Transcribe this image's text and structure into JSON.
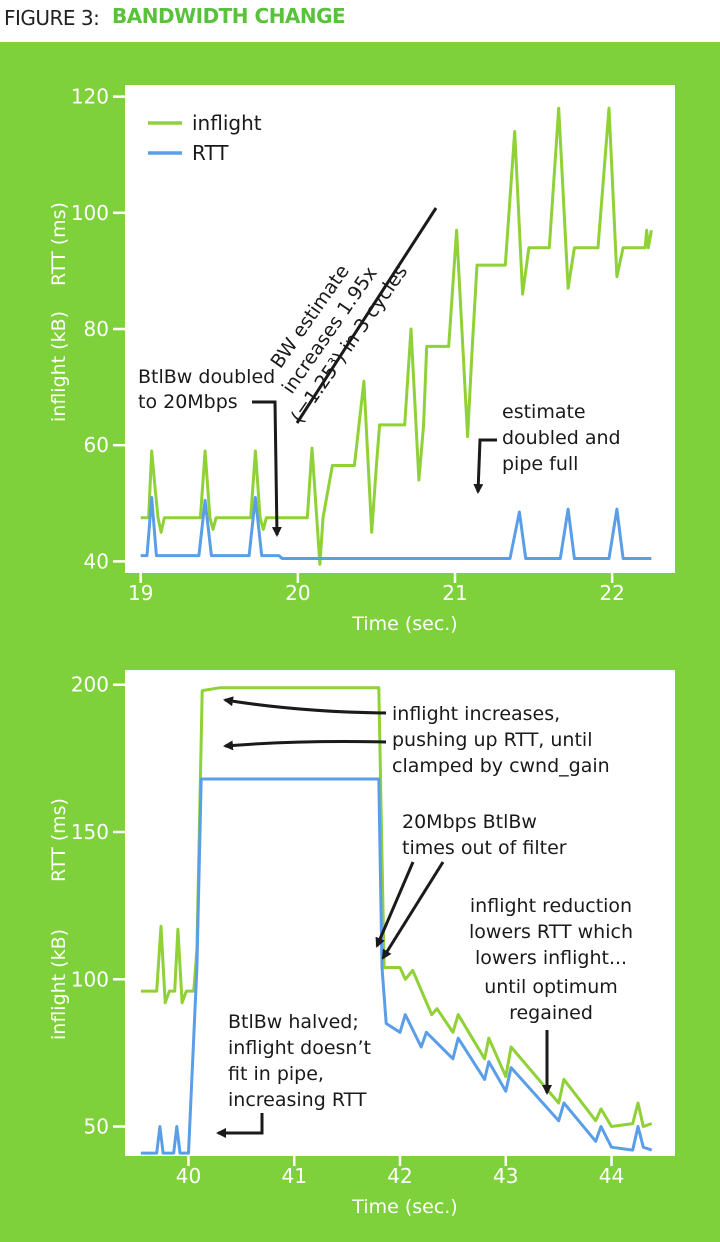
{
  "figure": {
    "label": "FIGURE 3:",
    "title": "BANDWIDTH CHANGE"
  },
  "colors": {
    "inflight": "#8fd136",
    "rtt": "#5b9ee8",
    "background": "#7fd13b",
    "panel": "#ffffff"
  },
  "legend": {
    "inflight": "inflight",
    "rtt": "RTT"
  },
  "chart_data": [
    {
      "type": "line",
      "xlabel": "Time (sec.)",
      "ylabel_top": "RTT (ms)",
      "ylabel_bottom": "inflight (kB)",
      "xlim": [
        18.9,
        22.4
      ],
      "ylim": [
        38,
        122
      ],
      "xticks": [
        "19",
        "20",
        "21",
        "22"
      ],
      "yticks": [
        "40",
        "60",
        "80",
        "100",
        "120"
      ],
      "series": [
        {
          "name": "inflight",
          "points": [
            [
              19.0,
              47.5
            ],
            [
              19.05,
              47.5
            ],
            [
              19.07,
              59
            ],
            [
              19.09,
              53
            ],
            [
              19.11,
              47.5
            ],
            [
              19.13,
              45
            ],
            [
              19.15,
              47.5
            ],
            [
              19.38,
              47.5
            ],
            [
              19.41,
              59
            ],
            [
              19.44,
              47.5
            ],
            [
              19.46,
              45.5
            ],
            [
              19.48,
              47.5
            ],
            [
              19.7,
              47.5
            ],
            [
              19.73,
              59
            ],
            [
              19.76,
              47.5
            ],
            [
              19.78,
              45.5
            ],
            [
              19.8,
              47.5
            ],
            [
              20.06,
              47.5
            ],
            [
              20.09,
              59.5
            ],
            [
              20.14,
              39.5
            ],
            [
              20.16,
              47.5
            ],
            [
              20.19,
              52
            ],
            [
              20.22,
              56.5
            ],
            [
              20.36,
              56.5
            ],
            [
              20.42,
              71
            ],
            [
              20.47,
              45
            ],
            [
              20.5,
              56.5
            ],
            [
              20.52,
              63.5
            ],
            [
              20.68,
              63.5
            ],
            [
              20.72,
              80
            ],
            [
              20.77,
              54
            ],
            [
              20.8,
              63.5
            ],
            [
              20.82,
              77
            ],
            [
              20.96,
              77
            ],
            [
              21.01,
              97
            ],
            [
              21.08,
              61.5
            ],
            [
              21.11,
              77
            ],
            [
              21.14,
              91
            ],
            [
              21.32,
              91
            ],
            [
              21.38,
              114
            ],
            [
              21.43,
              86
            ],
            [
              21.47,
              94
            ],
            [
              21.6,
              94
            ],
            [
              21.66,
              118
            ],
            [
              21.72,
              87
            ],
            [
              21.76,
              94
            ],
            [
              21.91,
              94
            ],
            [
              21.98,
              118
            ],
            [
              22.03,
              89
            ],
            [
              22.07,
              94
            ],
            [
              22.21,
              94
            ],
            [
              22.22,
              97
            ],
            [
              22.23,
              94
            ],
            [
              22.25,
              97
            ]
          ]
        },
        {
          "name": "RTT",
          "points": [
            [
              19.0,
              41
            ],
            [
              19.04,
              41
            ],
            [
              19.07,
              51
            ],
            [
              19.1,
              41
            ],
            [
              19.37,
              41
            ],
            [
              19.41,
              50.5
            ],
            [
              19.45,
              41
            ],
            [
              19.69,
              41
            ],
            [
              19.73,
              51
            ],
            [
              19.77,
              41
            ],
            [
              19.88,
              41
            ],
            [
              19.9,
              40.5
            ],
            [
              21.35,
              40.5
            ],
            [
              21.41,
              48.5
            ],
            [
              21.45,
              40.5
            ],
            [
              21.67,
              40.5
            ],
            [
              21.72,
              49
            ],
            [
              21.76,
              40.5
            ],
            [
              21.98,
              40.5
            ],
            [
              22.03,
              49
            ],
            [
              22.07,
              40.5
            ],
            [
              22.25,
              40.5
            ]
          ]
        }
      ],
      "annotations": [
        {
          "text": [
            "BtlBw doubled",
            "to 20Mbps"
          ]
        },
        {
          "text": [
            "BW estimate",
            "increases 1.95x",
            "(=1.25³) in 3 cycles"
          ]
        },
        {
          "text": [
            "estimate",
            "doubled and",
            "pipe full"
          ]
        }
      ]
    },
    {
      "type": "line",
      "xlabel": "Time (sec.)",
      "ylabel_top": "RTT (ms)",
      "ylabel_bottom": "inflight (kB)",
      "xlim": [
        39.4,
        44.6
      ],
      "ylim": [
        40,
        205
      ],
      "xticks": [
        "40",
        "41",
        "42",
        "43",
        "44"
      ],
      "yticks": [
        "50",
        "100",
        "150",
        "200"
      ],
      "series": [
        {
          "name": "inflight",
          "points": [
            [
              39.55,
              96
            ],
            [
              39.7,
              96
            ],
            [
              39.74,
              118
            ],
            [
              39.78,
              92
            ],
            [
              39.82,
              96
            ],
            [
              39.87,
              96
            ],
            [
              39.9,
              117
            ],
            [
              39.94,
              92
            ],
            [
              39.98,
              96
            ],
            [
              40.05,
              96
            ],
            [
              40.08,
              110
            ],
            [
              40.13,
              198
            ],
            [
              40.3,
              199
            ],
            [
              41.0,
              199
            ],
            [
              41.5,
              199
            ],
            [
              41.8,
              199
            ],
            [
              41.85,
              104
            ],
            [
              42.0,
              104
            ],
            [
              42.05,
              100
            ],
            [
              42.12,
              103
            ],
            [
              42.3,
              88
            ],
            [
              42.35,
              90
            ],
            [
              42.5,
              82
            ],
            [
              42.55,
              88
            ],
            [
              42.8,
              73
            ],
            [
              42.84,
              80
            ],
            [
              43.0,
              67
            ],
            [
              43.05,
              77
            ],
            [
              43.5,
              58
            ],
            [
              43.55,
              66
            ],
            [
              43.85,
              52
            ],
            [
              43.9,
              56
            ],
            [
              44.0,
              50
            ],
            [
              44.2,
              51
            ],
            [
              44.25,
              58
            ],
            [
              44.3,
              50
            ],
            [
              44.38,
              51
            ]
          ]
        },
        {
          "name": "RTT",
          "points": [
            [
              39.55,
              41
            ],
            [
              39.7,
              41
            ],
            [
              39.73,
              50
            ],
            [
              39.76,
              41
            ],
            [
              39.86,
              41
            ],
            [
              39.89,
              50
            ],
            [
              39.92,
              41
            ],
            [
              40.0,
              41
            ],
            [
              40.08,
              104
            ],
            [
              40.12,
              168
            ],
            [
              41.8,
              168
            ],
            [
              41.83,
              104
            ],
            [
              41.87,
              85
            ],
            [
              42.0,
              82
            ],
            [
              42.05,
              88
            ],
            [
              42.2,
              77
            ],
            [
              42.25,
              82
            ],
            [
              42.5,
              73
            ],
            [
              42.55,
              80
            ],
            [
              42.8,
              66
            ],
            [
              42.84,
              72
            ],
            [
              43.0,
              62
            ],
            [
              43.05,
              70
            ],
            [
              43.5,
              52
            ],
            [
              43.55,
              58
            ],
            [
              43.85,
              45
            ],
            [
              43.9,
              50
            ],
            [
              44.0,
              43
            ],
            [
              44.2,
              42
            ],
            [
              44.25,
              50
            ],
            [
              44.3,
              43
            ],
            [
              44.38,
              42
            ]
          ]
        }
      ],
      "annotations": [
        {
          "text": [
            "inflight increases,",
            "pushing up RTT, until",
            "clamped by cwnd_gain"
          ]
        },
        {
          "text": [
            "20Mbps BtlBw",
            "times out of filter"
          ]
        },
        {
          "text": [
            "inflight reduction",
            "lowers RTT which",
            "lowers inflight...",
            "until optimum",
            "regained"
          ]
        },
        {
          "text": [
            "BtlBw halved;",
            "inflight doesn’t",
            "fit in pipe,",
            "increasing RTT"
          ]
        }
      ]
    }
  ]
}
